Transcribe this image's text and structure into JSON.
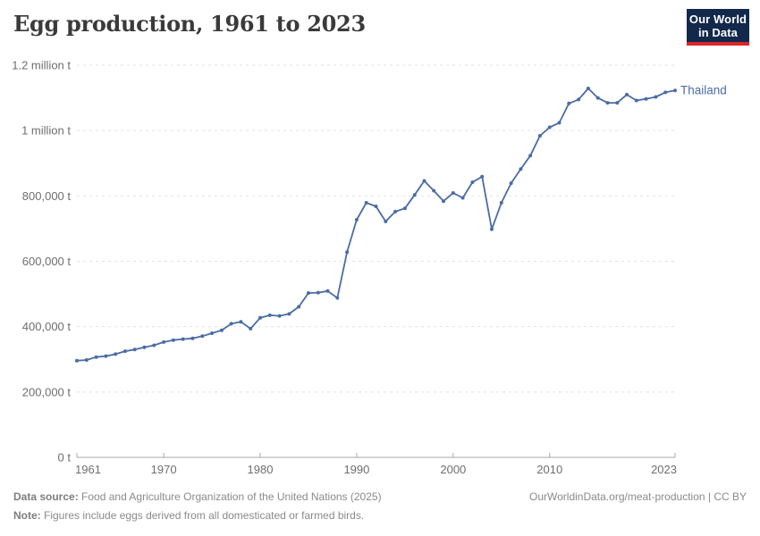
{
  "header": {
    "title": "Egg production, 1961 to 2023",
    "logo": {
      "line1": "Our World",
      "line2": "in Data",
      "bg_color": "#12294B",
      "accent_color": "#D8262C"
    }
  },
  "chart_data": {
    "type": "line",
    "title": "Egg production, 1961 to 2023",
    "unit": "t",
    "xlabel": "",
    "ylabel": "",
    "xlim": [
      1961,
      2023
    ],
    "ylim": [
      0,
      1200000
    ],
    "grid": "horizontal-dashed",
    "legend": "line-end-label",
    "x_ticks": [
      1961,
      1970,
      1980,
      1990,
      2000,
      2010,
      2023
    ],
    "y_ticks": [
      {
        "value": 0,
        "label": "0 t"
      },
      {
        "value": 200000,
        "label": "200,000 t"
      },
      {
        "value": 400000,
        "label": "400,000 t"
      },
      {
        "value": 600000,
        "label": "600,000 t"
      },
      {
        "value": 800000,
        "label": "800,000 t"
      },
      {
        "value": 1000000,
        "label": "1 million t"
      },
      {
        "value": 1200000,
        "label": "1.2 million t"
      }
    ],
    "series": [
      {
        "name": "Thailand",
        "color": "#4A6CA6",
        "years": [
          1961,
          1962,
          1963,
          1964,
          1965,
          1966,
          1967,
          1968,
          1969,
          1970,
          1971,
          1972,
          1973,
          1974,
          1975,
          1976,
          1977,
          1978,
          1979,
          1980,
          1981,
          1982,
          1983,
          1984,
          1985,
          1986,
          1987,
          1988,
          1989,
          1990,
          1991,
          1992,
          1993,
          1994,
          1995,
          1996,
          1997,
          1998,
          1999,
          2000,
          2001,
          2002,
          2003,
          2004,
          2005,
          2006,
          2007,
          2008,
          2009,
          2010,
          2011,
          2012,
          2013,
          2014,
          2015,
          2016,
          2017,
          2018,
          2019,
          2020,
          2021,
          2022,
          2023
        ],
        "values": [
          296000,
          298000,
          307000,
          310000,
          316000,
          325000,
          330000,
          337000,
          343000,
          353000,
          359000,
          362000,
          364000,
          371000,
          380000,
          389000,
          409000,
          415000,
          394000,
          427000,
          435000,
          433000,
          439000,
          461000,
          503000,
          504000,
          509000,
          488000,
          628000,
          727000,
          779000,
          768000,
          722000,
          752000,
          762000,
          803000,
          846000,
          816000,
          784000,
          809000,
          794000,
          842000,
          859000,
          698000,
          779000,
          839000,
          882000,
          923000,
          984000,
          1010000,
          1024000,
          1083000,
          1095000,
          1129000,
          1100000,
          1085000,
          1085000,
          1110000,
          1092000,
          1097000,
          1103000,
          1117000,
          1123000
        ]
      }
    ],
    "axis_color": "#a8a8a8",
    "gridline_color": "#e2e2e2",
    "tick_label_color": "#6e6e6e"
  },
  "footer": {
    "datasource_label": "Data source:",
    "datasource_text": "Food and Agriculture Organization of the United Nations (2025)",
    "note_label": "Note:",
    "note_text": "Figures include eggs derived from all domesticated or farmed birds.",
    "link": "OurWorldinData.org/meat-production | CC BY"
  }
}
